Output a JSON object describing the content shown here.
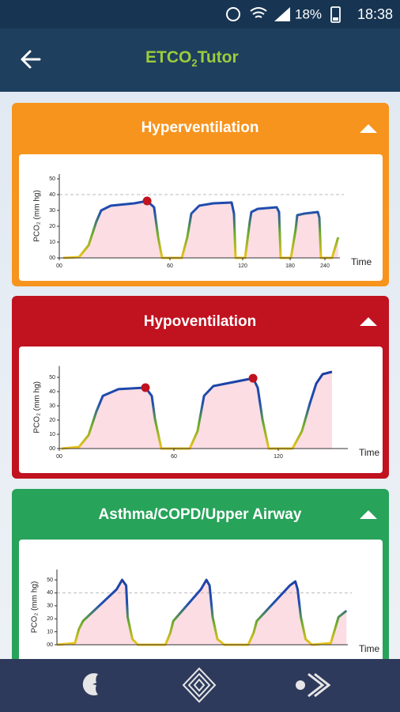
{
  "status_bar": {
    "battery": "18%",
    "time": "18:38"
  },
  "app_bar": {
    "title": "ETCO",
    "title_sub": "2",
    "title_rest": "Tutor"
  },
  "cards": [
    {
      "title": "Hyperventilation",
      "chart": {
        "type": "line",
        "y_label": "PCO₂ (mm hg)",
        "x_label": "Time",
        "xlim": [
          0,
          260
        ],
        "ylim": [
          0,
          53
        ],
        "xticks": [
          {
            "value": 0,
            "label": "00"
          },
          60,
          120,
          180,
          240
        ],
        "yticks": [
          {
            "value": 0,
            "label": "00"
          },
          10,
          20,
          30,
          40,
          50
        ],
        "reference_line": 40,
        "x": [
          2.1,
          10.7,
          15.9,
          20.1,
          22.7,
          27.9,
          40.7,
          47.6,
          51.4,
          53.6,
          55.7,
          69.8,
          74.3,
          77.6,
          84.1,
          95.9,
          110.9,
          112.8,
          114.1,
          123,
          129,
          131,
          139,
          163,
          166,
          168,
          181.4,
          189.5,
          192.3,
          204.5,
          227.7,
          230.5,
          233.2,
          249.5,
          257.7
        ],
        "y": [
          0,
          0.5,
          8,
          23,
          30,
          33,
          34.5,
          36,
          32,
          13,
          0,
          0,
          13,
          28,
          33,
          34.5,
          35,
          28,
          0,
          0,
          23,
          29,
          31,
          32,
          29,
          0,
          0,
          18,
          27,
          28,
          29,
          25.5,
          0,
          0,
          13
        ],
        "markers": [
          {
            "x": 47.6,
            "y": 36
          }
        ]
      }
    },
    {
      "title": "Hypoventilation",
      "chart": {
        "type": "line",
        "y_label": "PCO₂ (mm hg)",
        "x_label": "Time",
        "xlim": [
          0,
          160
        ],
        "ylim": [
          0,
          58
        ],
        "xticks": [
          {
            "value": 0,
            "label": "00"
          },
          60,
          120
        ],
        "yticks": [
          {
            "value": 0,
            "label": "00"
          },
          10,
          20,
          30,
          40,
          50
        ],
        "x": [
          1.2,
          10.3,
          15.3,
          19.4,
          22.8,
          31,
          45.1,
          48.4,
          50.1,
          53.4,
          69.1,
          73.6,
          77.3,
          82.7,
          105.5,
          108.2,
          110.9,
          114.5,
          128.2,
          133.6,
          138.2,
          141.8,
          145.5,
          150.9
        ],
        "y": [
          0,
          1.1,
          9.4,
          26,
          37,
          41.7,
          42.8,
          37,
          20.6,
          0,
          0,
          12.2,
          37,
          43.9,
          49.4,
          42.8,
          20.6,
          0,
          0,
          12.2,
          31.7,
          45.6,
          52.2,
          53.9
        ],
        "markers": [
          {
            "x": 45.1,
            "y": 42.8
          },
          {
            "x": 105.5,
            "y": 49.4
          }
        ]
      }
    },
    {
      "title": "Asthma/COPD/Upper Airway",
      "chart": {
        "type": "line",
        "y_label": "PCO₂ (mm hg)",
        "x_label": "Time",
        "xlim": [
          0,
          153
        ],
        "ylim": [
          0,
          58
        ],
        "xticks": [],
        "yticks": [
          {
            "value": 0,
            "label": "00"
          },
          10,
          20,
          30,
          40,
          50
        ],
        "reference_line": 40,
        "x": [
          0,
          9.5,
          11.6,
          13.7,
          31.4,
          34.3,
          36.4,
          37.2,
          39.7,
          42.6,
          57.1,
          59.6,
          61.2,
          75.7,
          78.6,
          80.3,
          81.9,
          84.4,
          88.1,
          100.6,
          103.4,
          105.1,
          122.5,
          125.4,
          126.6,
          128.3,
          130.8,
          134.1,
          144,
          148.1,
          152.3
        ],
        "y": [
          0,
          1.2,
          12.2,
          18.3,
          42.7,
          50,
          45.7,
          21.3,
          4.3,
          0,
          0,
          9.1,
          18.3,
          42.7,
          50,
          45.7,
          21.3,
          4.3,
          0,
          0,
          9.1,
          18.3,
          45.7,
          48.8,
          42.7,
          21.3,
          4.3,
          0,
          1.2,
          21.3,
          26.2
        ],
        "markers": []
      }
    }
  ]
}
